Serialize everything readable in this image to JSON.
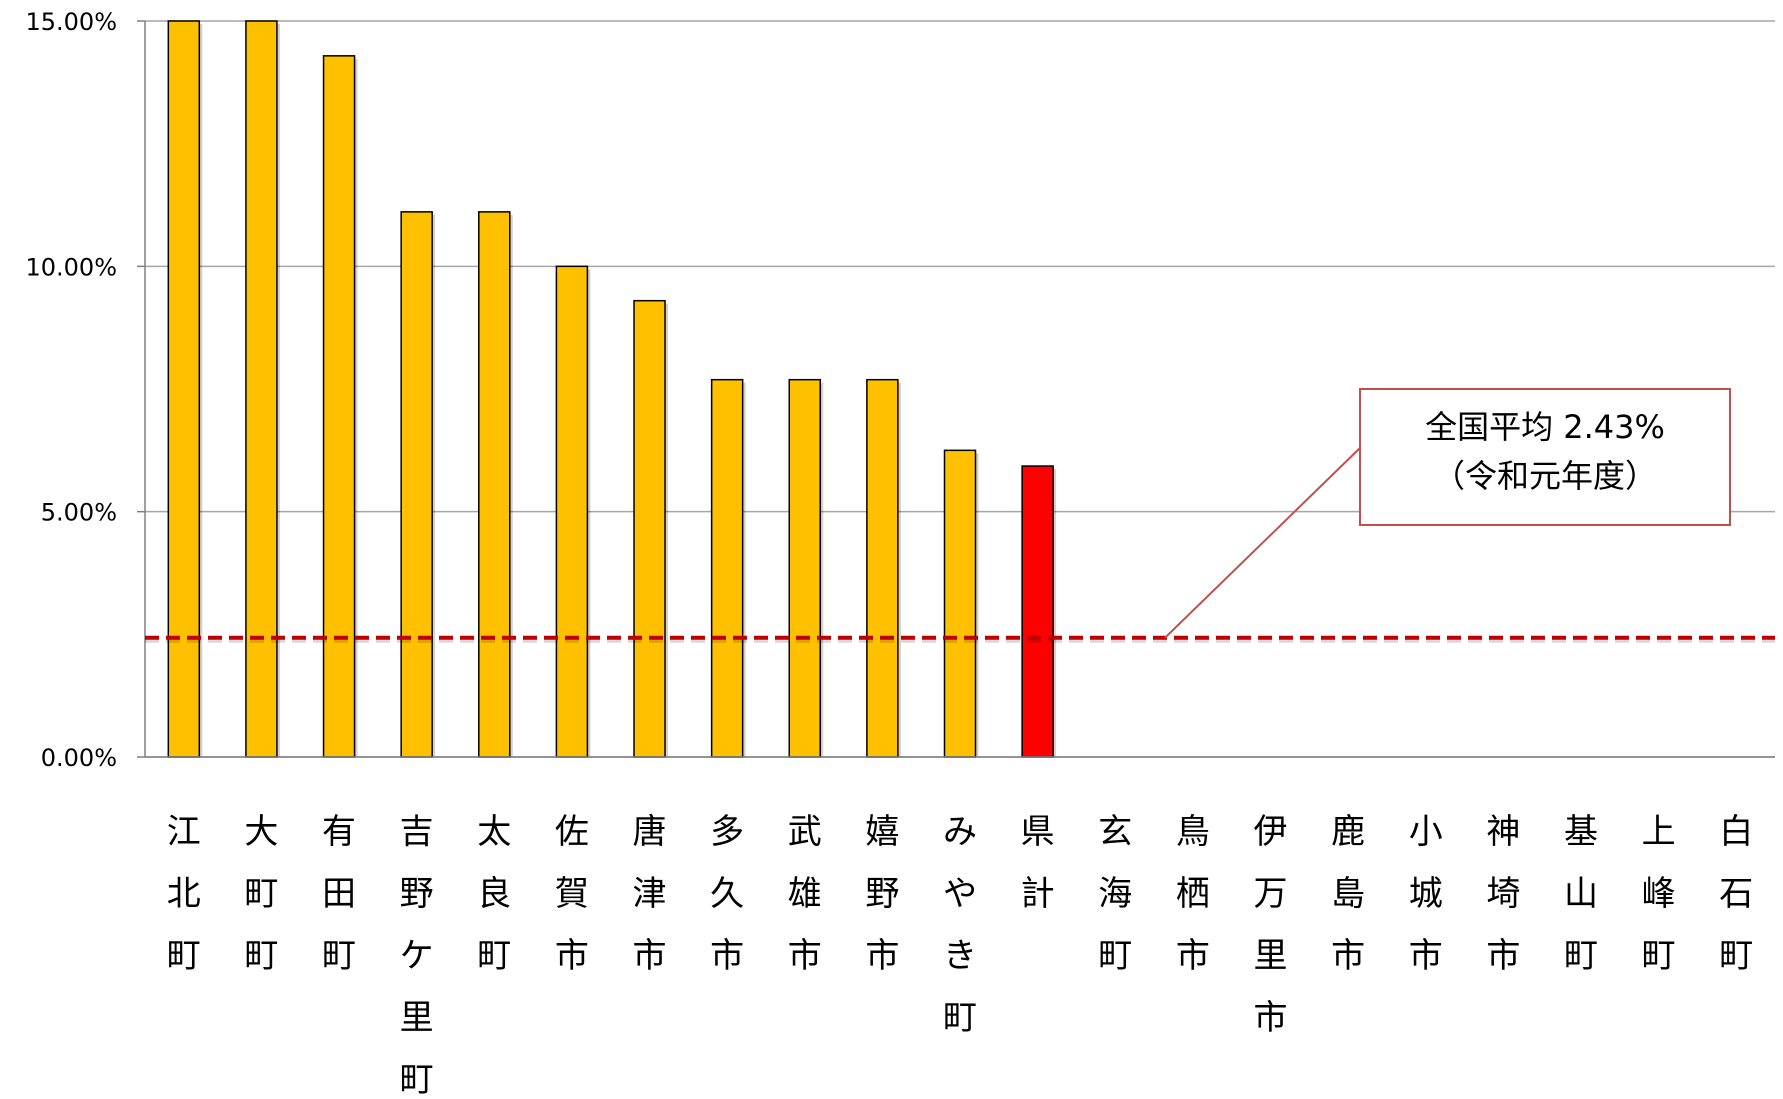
{
  "chart_data": {
    "type": "bar",
    "categories": [
      "江北町",
      "大町町",
      "有田町",
      "吉野ケ里町",
      "太良町",
      "佐賀市",
      "唐津市",
      "多久市",
      "武雄市",
      "嬉野市",
      "みやき町",
      "県計",
      "玄海町",
      "鳥栖市",
      "伊万里市",
      "鹿島市",
      "小城市",
      "神埼市",
      "基山町",
      "上峰町",
      "白石町"
    ],
    "values": [
      15.0,
      15.0,
      14.29,
      11.11,
      11.11,
      10.0,
      9.3,
      7.69,
      7.69,
      7.69,
      6.25,
      5.93,
      0,
      0,
      0,
      0,
      0,
      0,
      0,
      0,
      0
    ],
    "highlight_category": "県計",
    "ylim": [
      0,
      15
    ],
    "yticks": [
      0,
      5,
      10,
      15
    ],
    "ytick_labels": [
      "0.00%",
      "5.00%",
      "10.00%",
      "15.00%"
    ],
    "grid": true,
    "colors": {
      "bar": "#FFC000",
      "highlight": "#FF0000",
      "reference": "#C00000"
    },
    "reference_line": {
      "value": 2.43,
      "label_line1": "全国平均  2.43%",
      "label_line2": "（令和元年度）"
    }
  }
}
